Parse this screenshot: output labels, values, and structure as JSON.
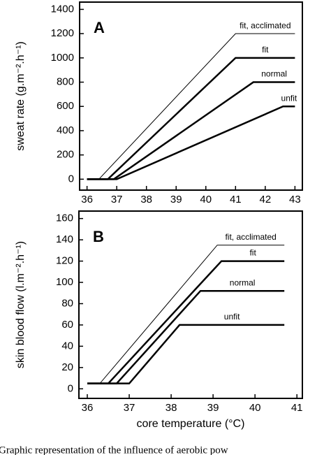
{
  "chart_data": [
    {
      "type": "line",
      "panel_label": "A",
      "y_label": "sweat rate (g.m⁻².h⁻¹)",
      "xlim": [
        35.75,
        43.25
      ],
      "xticks": [
        36,
        37,
        38,
        39,
        40,
        41,
        42,
        43
      ],
      "ylim": [
        -90,
        1460
      ],
      "yticks": [
        0,
        200,
        400,
        600,
        800,
        1000,
        1200,
        1400
      ],
      "series": [
        {
          "name": "fit, acclimated",
          "color": "#000000",
          "width": 1,
          "x": [
            36,
            36.4,
            41,
            43
          ],
          "values": [
            0,
            0,
            1200,
            1200
          ]
        },
        {
          "name": "fit",
          "color": "#000000",
          "width": 2.5,
          "x": [
            36,
            36.7,
            41,
            43
          ],
          "values": [
            0,
            0,
            1000,
            1000
          ]
        },
        {
          "name": "normal",
          "color": "#000000",
          "width": 2.5,
          "x": [
            36,
            36.9,
            41.6,
            43
          ],
          "values": [
            0,
            0,
            800,
            800
          ]
        },
        {
          "name": "unfit",
          "color": "#000000",
          "width": 2.5,
          "x": [
            36,
            37,
            42.6,
            43
          ],
          "values": [
            0,
            0,
            600,
            600
          ]
        }
      ]
    },
    {
      "type": "line",
      "panel_label": "B",
      "y_label": "skin blood flow (l.m⁻².h⁻¹)",
      "x_label": "core temperature (°C)",
      "xlim": [
        35.8,
        41.13
      ],
      "xticks": [
        36,
        37,
        38,
        39,
        40,
        41
      ],
      "ylim": [
        -9,
        167
      ],
      "yticks": [
        0,
        20,
        40,
        60,
        80,
        100,
        120,
        140,
        160
      ],
      "series": [
        {
          "name": "fit, acclimated",
          "color": "#000000",
          "width": 1,
          "x": [
            36,
            36.3,
            39.1,
            40.7
          ],
          "values": [
            5,
            5,
            135,
            135
          ]
        },
        {
          "name": "fit",
          "color": "#000000",
          "width": 2.5,
          "x": [
            36,
            36.5,
            39.2,
            40.7
          ],
          "values": [
            5,
            5,
            120,
            120
          ]
        },
        {
          "name": "normal",
          "color": "#000000",
          "width": 2.5,
          "x": [
            36,
            36.7,
            38.7,
            40.7
          ],
          "values": [
            5,
            5,
            92,
            92
          ]
        },
        {
          "name": "unfit",
          "color": "#000000",
          "width": 2.5,
          "x": [
            36,
            37,
            38.2,
            40.7
          ],
          "values": [
            5,
            5,
            60,
            60
          ]
        }
      ]
    }
  ],
  "caption": "Graphic representation of the influence of aerobic pow"
}
